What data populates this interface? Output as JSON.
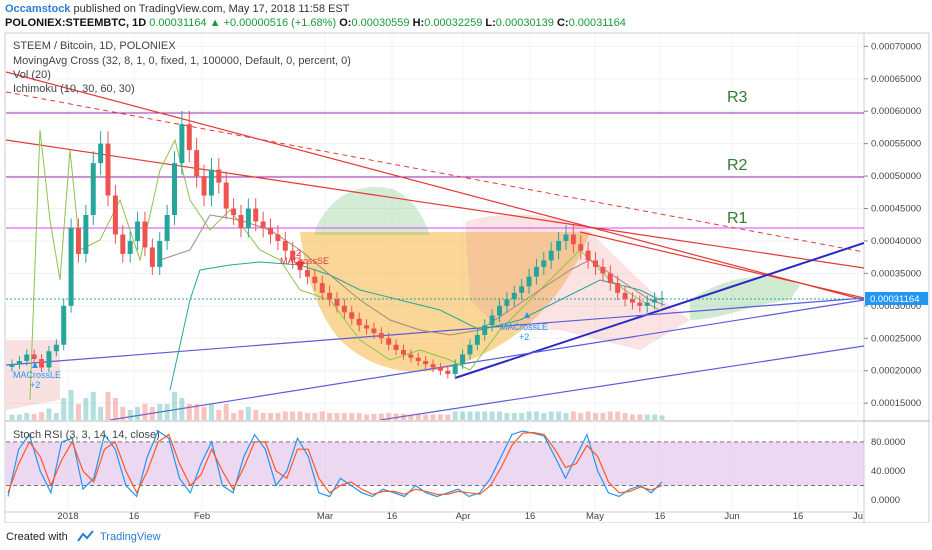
{
  "header": {
    "author": "Occamstock",
    "published_text": "published on TradingView.com, May 17, 2018 11:58 EST",
    "symbol_line": "POLONIEX:STEEMBTC, 1D",
    "last_price": "0.00031164",
    "change_arrow": "▲",
    "change": "+0.00000516 (+1.68%)",
    "o_label": "O:",
    "o_value": "0.00030559",
    "h_label": "H:",
    "h_value": "0.00032259",
    "l_label": "L:",
    "l_value": "0.00030139",
    "c_label": "C:",
    "c_value": "0.00031164"
  },
  "legend": {
    "title": "STEEM / Bitcoin, 1D, POLONIEX",
    "ma_cross": "MovingAvg Cross (32, 8, 1, 0, fixed, 1, 100000, Default, 0, percent, 0)",
    "vol": "Vol (20)",
    "ichimoku": "Ichimoku (10, 30, 60, 30)",
    "stoch_rsi": "Stoch RSI (3, 3, 14, 14, close)"
  },
  "annotations": {
    "r3": "R3",
    "r2": "R2",
    "r1": "R1",
    "macross_se": "MACrossSE",
    "macross_se_count": "-2",
    "macross_le_1": "MACrossLE",
    "macross_le_1_count": "+2",
    "macross_le_2": "MACrossLE",
    "macross_le_2_count": "+2",
    "price_tag": "0.00031164"
  },
  "footer": {
    "created_with": "Created with",
    "brand": "TradingView"
  },
  "colors": {
    "bull": "#26a69a",
    "bear": "#ef5350",
    "support_lines": "#3f3fd8",
    "resistance_lines": "#e53935",
    "r_levels": "#9c27b0",
    "cup_fill": "#f5b642",
    "stoch_k": "#2196f3",
    "stoch_d": "#ff5722",
    "stoch_band": "#e1bee7",
    "price_tag": "#2196f3"
  },
  "chart_data": [
    {
      "type": "candlestick",
      "title": "STEEM / Bitcoin, 1D, POLONIEX",
      "y_axis_ticks": [
        "0.00070000",
        "0.00065000",
        "0.00060000",
        "0.00055000",
        "0.00050000",
        "0.00045000",
        "0.00040000",
        "0.00035000",
        "0.00030000",
        "0.00025000",
        "0.00020000",
        "0.00015000"
      ],
      "x_axis_ticks": [
        "2018",
        "16",
        "Feb",
        "Mar",
        "16",
        "Apr",
        "16",
        "May",
        "16",
        "Jun",
        "16",
        "Ju"
      ],
      "ylim": [
        0.000124,
        0.000719
      ],
      "horizontal_levels": [
        {
          "name": "R3",
          "value": 0.000595
        },
        {
          "name": "R2",
          "value": 0.0005
        },
        {
          "name": "R1",
          "value": 0.000422
        }
      ],
      "close_series": [
        0.00021,
        0.000215,
        0.000225,
        0.000218,
        0.000205,
        0.00023,
        0.00024,
        0.0003,
        0.00042,
        0.00038,
        0.00044,
        0.00052,
        0.00055,
        0.00047,
        0.00041,
        0.00038,
        0.0004,
        0.00043,
        0.00039,
        0.00036,
        0.0004,
        0.00044,
        0.00052,
        0.00058,
        0.00054,
        0.0005,
        0.00047,
        0.00051,
        0.00049,
        0.00045,
        0.00044,
        0.00042,
        0.00045,
        0.00043,
        0.00042,
        0.00041,
        0.0004,
        0.000385,
        0.00037,
        0.000355,
        0.000345,
        0.000335,
        0.00032,
        0.00031,
        0.0003,
        0.00029,
        0.00028,
        0.00027,
        0.000265,
        0.000258,
        0.00025,
        0.00024,
        0.000232,
        0.000225,
        0.00022,
        0.000215,
        0.00021,
        0.000205,
        0.0002,
        0.000195,
        0.00021,
        0.000225,
        0.00024,
        0.000255,
        0.00027,
        0.000285,
        0.0003,
        0.00031,
        0.00032,
        0.00033,
        0.000345,
        0.00036,
        0.00037,
        0.000385,
        0.0004,
        0.00041,
        0.000395,
        0.000385,
        0.00037,
        0.00036,
        0.00035,
        0.000335,
        0.00032,
        0.00031,
        0.000305,
        0.0003,
        0.000305,
        0.00031,
        0.000312
      ]
    },
    {
      "type": "line",
      "title": "Stoch RSI (3, 3, 14, 14, close)",
      "y_axis_ticks": [
        "80.0000",
        "40.0000",
        "0.0000"
      ],
      "ylim": [
        -15,
        95
      ],
      "band": [
        20,
        80
      ],
      "series": [
        {
          "name": "K",
          "values": [
            5,
            70,
            90,
            40,
            10,
            80,
            85,
            15,
            30,
            90,
            70,
            20,
            5,
            60,
            95,
            85,
            30,
            10,
            50,
            80,
            20,
            10,
            60,
            90,
            70,
            20,
            40,
            85,
            60,
            10,
            5,
            30,
            20,
            10,
            5,
            15,
            10,
            5,
            20,
            10,
            5,
            10,
            15,
            5,
            10,
            30,
            60,
            90,
            95,
            92,
            88,
            60,
            30,
            60,
            90,
            40,
            10,
            5,
            15,
            20,
            10,
            25
          ]
        },
        {
          "name": "D",
          "values": [
            10,
            50,
            80,
            60,
            20,
            55,
            80,
            40,
            25,
            70,
            80,
            40,
            10,
            40,
            80,
            90,
            50,
            20,
            35,
            70,
            40,
            15,
            45,
            80,
            80,
            40,
            30,
            70,
            70,
            30,
            10,
            20,
            25,
            15,
            8,
            12,
            12,
            8,
            15,
            12,
            8,
            8,
            12,
            10,
            8,
            20,
            45,
            75,
            92,
            93,
            90,
            70,
            45,
            50,
            75,
            60,
            25,
            10,
            12,
            18,
            14,
            20
          ]
        }
      ]
    }
  ]
}
